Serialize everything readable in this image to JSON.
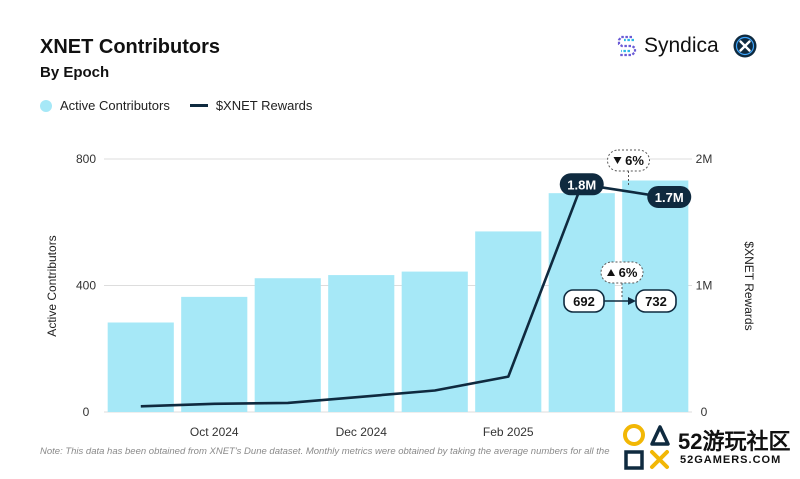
{
  "header": {
    "title": "XNET Contributors",
    "subtitle": "By Epoch"
  },
  "brand": {
    "name": "Syndica"
  },
  "legend": {
    "bars_label": "Active Contributors",
    "line_label": "$XNET Rewards"
  },
  "footnote": "Note: This data has been obtained from XNET's Dune dataset. Monthly metrics were obtained by taking the average numbers for all the",
  "watermark": {
    "big": "52游玩社区",
    "small": "52GAMERS.COM"
  },
  "colors": {
    "bar": "#a6e8f7",
    "line": "#0f2a3f",
    "grid": "#dddddd"
  },
  "chart_data": {
    "type": "bar",
    "left_axis": {
      "label": "Active Contributors",
      "ticks": [
        "0",
        "400",
        "800"
      ],
      "range": [
        0,
        800
      ]
    },
    "right_axis": {
      "label": "$XNET Rewards",
      "ticks": [
        "0",
        "1M",
        "2M"
      ],
      "range": [
        0,
        2000000
      ]
    },
    "x_tick_labels": [
      {
        "label": "Oct 2024",
        "position": 1.5
      },
      {
        "label": "Dec 2024",
        "position": 3.5
      },
      {
        "label": "Feb 2025",
        "position": 5.5
      }
    ],
    "grid": true,
    "legend_position": "top-left",
    "series": [
      {
        "name": "Active Contributors",
        "type": "bar",
        "values": [
          283,
          364,
          423,
          433,
          444,
          571,
          692,
          732
        ]
      },
      {
        "name": "$XNET Rewards",
        "type": "line",
        "values": [
          45000,
          65000,
          72000,
          120000,
          170000,
          280000,
          1800000,
          1700000
        ]
      }
    ],
    "annotations": {
      "reward_labels": [
        {
          "index": 6,
          "text": "1.8M"
        },
        {
          "index": 7,
          "text": "1.7M"
        }
      ],
      "reward_change": {
        "text": "6%",
        "direction": "down"
      },
      "contributor_labels": [
        {
          "index": 6,
          "text": "692"
        },
        {
          "index": 7,
          "text": "732"
        }
      ],
      "contributor_change": {
        "text": "6%",
        "direction": "up"
      }
    }
  }
}
